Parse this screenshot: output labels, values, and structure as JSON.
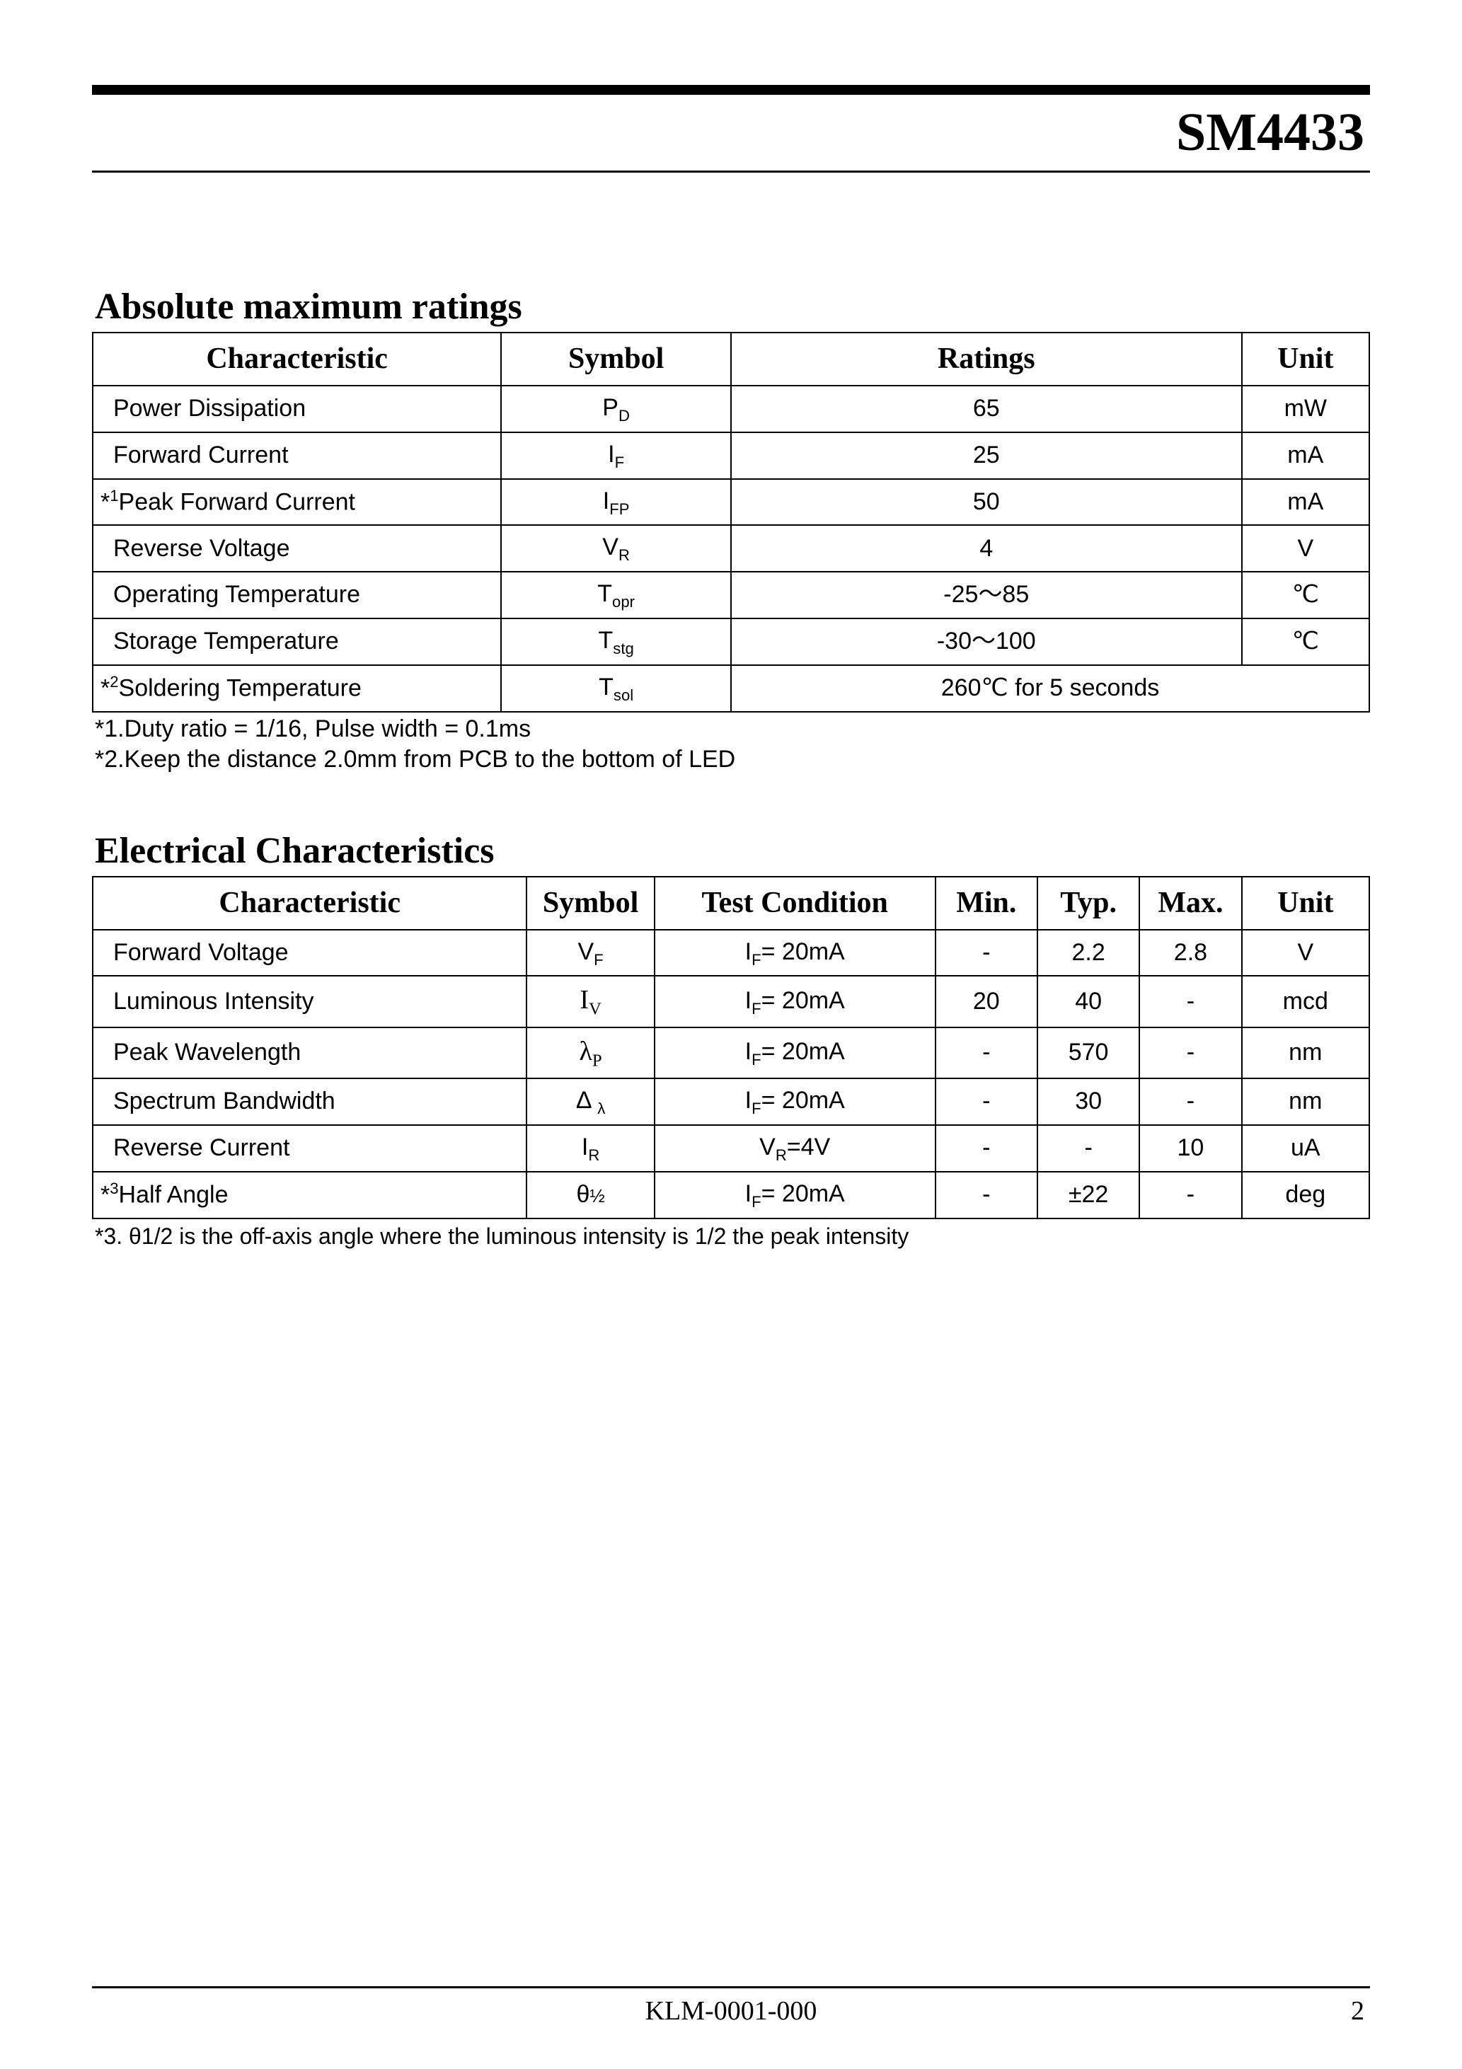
{
  "header": {
    "part_number": "SM4433"
  },
  "sections": {
    "amr": {
      "heading": "Absolute maximum ratings",
      "columns": [
        "Characteristic",
        "Symbol",
        "Ratings",
        "Unit"
      ],
      "rows": [
        {
          "char": "Power Dissipation",
          "sym_base": "P",
          "sym_sub": "D",
          "rating": "65",
          "unit": "mW",
          "sup": ""
        },
        {
          "char": "Forward Current",
          "sym_base": "I",
          "sym_sub": "F",
          "rating": "25",
          "unit": "mA",
          "sup": ""
        },
        {
          "char": "Peak Forward Current",
          "sym_base": "I",
          "sym_sub": "FP",
          "rating": "50",
          "unit": "mA",
          "sup": "1"
        },
        {
          "char": "Reverse Voltage",
          "sym_base": "V",
          "sym_sub": "R",
          "rating": "4",
          "unit": "V",
          "sup": ""
        },
        {
          "char": "Operating Temperature",
          "sym_base": "T",
          "sym_sub": "opr",
          "rating": "-25～85",
          "unit": "℃",
          "sup": ""
        },
        {
          "char": "Storage Temperature",
          "sym_base": "T",
          "sym_sub": "stg",
          "rating": "-30～100",
          "unit": "℃",
          "sup": ""
        },
        {
          "char": "Soldering Temperature",
          "sym_base": "T",
          "sym_sub": "sol",
          "rating": "260℃ for 5 seconds",
          "unit": "",
          "sup": "2",
          "span_unit": true
        }
      ],
      "notes": [
        "*1.Duty ratio = 1/16, Pulse width = 0.1ms",
        "*2.Keep the distance 2.0mm from PCB to the bottom of LED"
      ]
    },
    "ec": {
      "heading": "Electrical Characteristics",
      "columns": [
        "Characteristic",
        "Symbol",
        "Test Condition",
        "Min.",
        "Typ.",
        "Max.",
        "Unit"
      ],
      "rows": [
        {
          "char": "Forward Voltage",
          "sym_html": "V<span class='sub'>F</span>",
          "cond_html": "I<span class='sub'>F</span>= 20mA",
          "min": "-",
          "typ": "2.2",
          "max": "2.8",
          "unit": "V",
          "sup": ""
        },
        {
          "char": "Luminous Intensity",
          "sym_html": "I<span class='sub'>V</span>",
          "cond_html": "I<span class='sub'>F</span>= 20mA",
          "min": "20",
          "typ": "40",
          "max": "-",
          "unit": "mcd",
          "sup": "",
          "sym_serif": true
        },
        {
          "char": "Peak Wavelength",
          "sym_html": "λ<span class='sub'>P</span>",
          "cond_html": "I<span class='sub'>F</span>= 20mA",
          "min": "-",
          "typ": "570",
          "max": "-",
          "unit": "nm",
          "sup": "",
          "sym_serif": true
        },
        {
          "char": "Spectrum Bandwidth",
          "sym_html": "Δ <span class='sub'>λ</span>",
          "cond_html": "I<span class='sub'>F</span>= 20mA",
          "min": "-",
          "typ": "30",
          "max": "-",
          "unit": "nm",
          "sup": ""
        },
        {
          "char": "Reverse Current",
          "sym_html": "I<span class='sub'>R</span>",
          "cond_html": "V<span class='sub'>R</span>=4V",
          "min": "-",
          "typ": "-",
          "max": "10",
          "unit": "uA",
          "sup": ""
        },
        {
          "char": "Half Angle",
          "sym_html": "θ<span style='font-size:0.75em'>½</span>",
          "cond_html": "I<span class='sub'>F</span>= 20mA",
          "min": "-",
          "typ": "±22",
          "max": "-",
          "unit": "deg",
          "sup": "3"
        }
      ],
      "note3": "*3. θ1/2 is the off-axis angle where the luminous intensity is 1/2 the peak intensity"
    }
  },
  "footer": {
    "doc": "KLM-0001-000",
    "page": "2"
  },
  "col_widths": {
    "amr": [
      "32%",
      "18%",
      "40%",
      "10%"
    ],
    "ec": [
      "34%",
      "10%",
      "22%",
      "8%",
      "8%",
      "8%",
      "10%"
    ]
  }
}
